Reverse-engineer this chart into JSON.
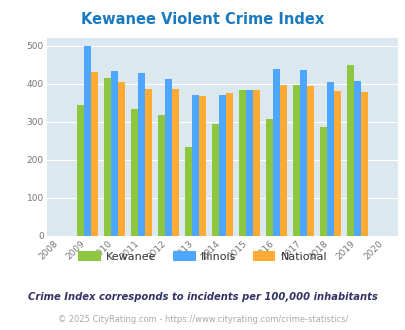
{
  "title": "Kewanee Violent Crime Index",
  "title_color": "#1a7abf",
  "years": [
    2009,
    2010,
    2011,
    2012,
    2013,
    2014,
    2015,
    2016,
    2017,
    2018,
    2019
  ],
  "kewanee": [
    345,
    415,
    333,
    318,
    233,
    295,
    382,
    307,
    397,
    285,
    449
  ],
  "illinois": [
    498,
    433,
    428,
    413,
    370,
    370,
    383,
    438,
    437,
    405,
    408
  ],
  "national": [
    430,
    405,
    387,
    387,
    367,
    375,
    383,
    397,
    394,
    380,
    379
  ],
  "kewanee_color": "#8dc63f",
  "illinois_color": "#4da6ff",
  "national_color": "#ffaa33",
  "bg_color": "#ffffff",
  "plot_bg": "#dce8ef",
  "xlim": [
    2007.5,
    2020.5
  ],
  "ylim": [
    0,
    520
  ],
  "yticks": [
    0,
    100,
    200,
    300,
    400,
    500
  ],
  "xticks": [
    2008,
    2009,
    2010,
    2011,
    2012,
    2013,
    2014,
    2015,
    2016,
    2017,
    2018,
    2019,
    2020
  ],
  "footnote1": "Crime Index corresponds to incidents per 100,000 inhabitants",
  "footnote2": "© 2025 CityRating.com - https://www.cityrating.com/crime-statistics/",
  "legend_labels": [
    "Kewanee",
    "Illinois",
    "National"
  ]
}
